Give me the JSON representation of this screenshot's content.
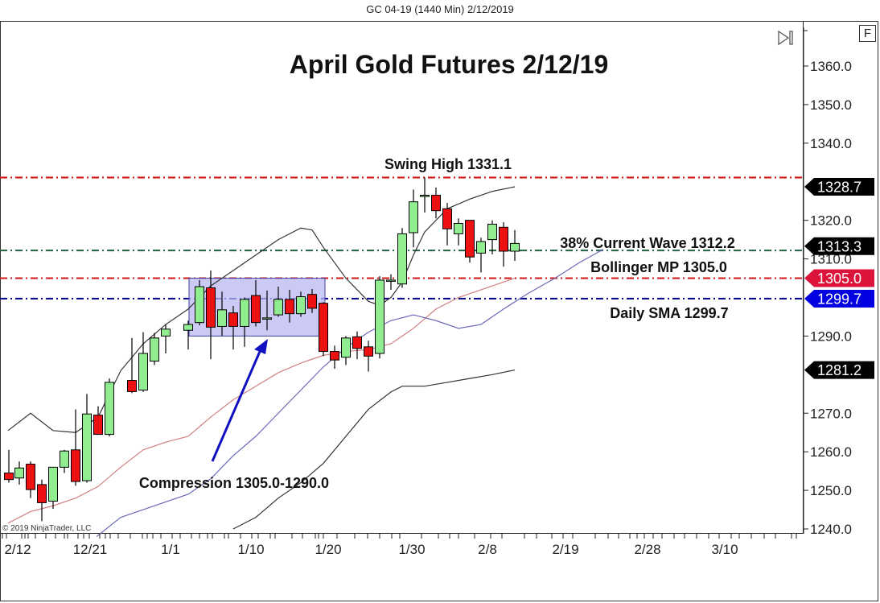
{
  "window": {
    "title": "GC 04-19 (1440 Min)  2/12/2019",
    "f_button_label": "F",
    "skip_icon": "skip-to-end-icon",
    "copyright": "© 2019 NinjaTrader, LLC"
  },
  "chart_data": {
    "type": "candlestick",
    "title": "April Gold Futures 2/12/19",
    "instrument": "GC 04-19",
    "interval": "1440 Min",
    "ylim": [
      1238,
      1370
    ],
    "y_ticks": [
      1360.0,
      1350.0,
      1340.0,
      1320.0,
      1310.0,
      1290.0,
      1270.0,
      1260.0,
      1250.0,
      1240.0
    ],
    "x_tick_labels": [
      "2/12",
      "12/21",
      "1/1",
      "1/10",
      "1/20",
      "1/30",
      "2/8",
      "2/19",
      "2/28",
      "3/10"
    ],
    "candles": [
      {
        "x": 11,
        "o": 1254.5,
        "h": 1260.5,
        "l": 1252.0,
        "c": 1252.8
      },
      {
        "x": 24,
        "o": 1253.2,
        "h": 1257.5,
        "l": 1251.5,
        "c": 1255.8
      },
      {
        "x": 38,
        "o": 1256.8,
        "h": 1257.5,
        "l": 1248.0,
        "c": 1250.2
      },
      {
        "x": 52,
        "o": 1251.5,
        "h": 1252.8,
        "l": 1242.0,
        "c": 1246.8
      },
      {
        "x": 66,
        "o": 1247.2,
        "h": 1256.0,
        "l": 1245.2,
        "c": 1256.0
      },
      {
        "x": 80,
        "o": 1256.0,
        "h": 1260.5,
        "l": 1254.5,
        "c": 1260.2
      },
      {
        "x": 94,
        "o": 1260.5,
        "h": 1271.0,
        "l": 1251.2,
        "c": 1252.3
      },
      {
        "x": 108,
        "o": 1252.5,
        "h": 1275.0,
        "l": 1252.0,
        "c": 1269.8
      },
      {
        "x": 122,
        "o": 1269.5,
        "h": 1271.8,
        "l": 1264.5,
        "c": 1264.5
      },
      {
        "x": 136,
        "o": 1264.5,
        "h": 1279.0,
        "l": 1264.0,
        "c": 1278.0
      },
      {
        "x": 164,
        "o": 1278.5,
        "h": 1289.5,
        "l": 1275.2,
        "c": 1275.6
      },
      {
        "x": 178,
        "o": 1276.0,
        "h": 1291.0,
        "l": 1275.5,
        "c": 1285.5
      },
      {
        "x": 192,
        "o": 1283.5,
        "h": 1290.8,
        "l": 1282.5,
        "c": 1289.5
      },
      {
        "x": 206,
        "o": 1290.0,
        "h": 1293.0,
        "l": 1285.5,
        "c": 1291.8
      },
      {
        "x": 234,
        "o": 1291.5,
        "h": 1294.0,
        "l": 1286.5,
        "c": 1293.0
      },
      {
        "x": 248,
        "o": 1293.5,
        "h": 1304.5,
        "l": 1292.8,
        "c": 1302.8
      },
      {
        "x": 262,
        "o": 1302.5,
        "h": 1307.0,
        "l": 1284.0,
        "c": 1292.3
      },
      {
        "x": 276,
        "o": 1292.5,
        "h": 1301.5,
        "l": 1290.0,
        "c": 1296.8
      },
      {
        "x": 290,
        "o": 1296.0,
        "h": 1297.8,
        "l": 1286.5,
        "c": 1292.5
      },
      {
        "x": 304,
        "o": 1292.5,
        "h": 1300.0,
        "l": 1287.2,
        "c": 1299.5
      },
      {
        "x": 318,
        "o": 1300.5,
        "h": 1304.5,
        "l": 1292.5,
        "c": 1293.5
      },
      {
        "x": 332,
        "o": 1294.5,
        "h": 1301.8,
        "l": 1291.5,
        "c": 1294.7
      },
      {
        "x": 346,
        "o": 1295.5,
        "h": 1302.8,
        "l": 1295.0,
        "c": 1299.5
      },
      {
        "x": 360,
        "o": 1299.5,
        "h": 1302.0,
        "l": 1293.5,
        "c": 1295.8
      },
      {
        "x": 374,
        "o": 1295.8,
        "h": 1301.5,
        "l": 1295.0,
        "c": 1300.2
      },
      {
        "x": 388,
        "o": 1300.8,
        "h": 1302.2,
        "l": 1296.0,
        "c": 1297.2
      },
      {
        "x": 402,
        "o": 1298.5,
        "h": 1298.8,
        "l": 1284.8,
        "c": 1286.0
      },
      {
        "x": 416,
        "o": 1286.0,
        "h": 1287.5,
        "l": 1281.5,
        "c": 1283.8
      },
      {
        "x": 430,
        "o": 1284.5,
        "h": 1290.0,
        "l": 1282.5,
        "c": 1289.5
      },
      {
        "x": 444,
        "o": 1289.8,
        "h": 1291.2,
        "l": 1284.0,
        "c": 1286.8
      },
      {
        "x": 458,
        "o": 1287.2,
        "h": 1288.8,
        "l": 1280.8,
        "c": 1284.8
      },
      {
        "x": 472,
        "o": 1285.5,
        "h": 1305.5,
        "l": 1284.2,
        "c": 1304.5
      },
      {
        "x": 486,
        "o": 1304.5,
        "h": 1306.0,
        "l": 1302.0,
        "c": 1304.5
      },
      {
        "x": 500,
        "o": 1303.5,
        "h": 1318.0,
        "l": 1302.5,
        "c": 1316.5
      },
      {
        "x": 514,
        "o": 1316.8,
        "h": 1328.0,
        "l": 1313.0,
        "c": 1324.8
      },
      {
        "x": 528,
        "o": 1326.5,
        "h": 1331.1,
        "l": 1322.0,
        "c": 1326.5
      },
      {
        "x": 542,
        "o": 1326.5,
        "h": 1328.5,
        "l": 1320.5,
        "c": 1322.5
      },
      {
        "x": 556,
        "o": 1323.0,
        "h": 1324.5,
        "l": 1313.5,
        "c": 1317.8
      },
      {
        "x": 570,
        "o": 1316.5,
        "h": 1320.5,
        "l": 1313.5,
        "c": 1319.2
      },
      {
        "x": 584,
        "o": 1320.0,
        "h": 1320.0,
        "l": 1309.0,
        "c": 1310.5
      },
      {
        "x": 598,
        "o": 1311.5,
        "h": 1315.5,
        "l": 1306.5,
        "c": 1314.5
      },
      {
        "x": 612,
        "o": 1315.0,
        "h": 1320.0,
        "l": 1311.2,
        "c": 1319.0
      },
      {
        "x": 626,
        "o": 1318.2,
        "h": 1319.5,
        "l": 1308.0,
        "c": 1312.0
      },
      {
        "x": 640,
        "o": 1312.0,
        "h": 1317.5,
        "l": 1309.5,
        "c": 1314.0
      }
    ],
    "indicators": {
      "bollinger_upper": {
        "color": "#333333",
        "points": [
          [
            10,
            1265.5
          ],
          [
            38,
            1270
          ],
          [
            66,
            1265.5
          ],
          [
            94,
            1265
          ],
          [
            122,
            1269
          ],
          [
            150,
            1281
          ],
          [
            178,
            1288
          ],
          [
            206,
            1293
          ],
          [
            234,
            1297
          ],
          [
            262,
            1303
          ],
          [
            290,
            1307
          ],
          [
            318,
            1311
          ],
          [
            346,
            1315
          ],
          [
            374,
            1318
          ],
          [
            388,
            1317.5
          ],
          [
            402,
            1313
          ],
          [
            430,
            1305
          ],
          [
            458,
            1299
          ],
          [
            472,
            1298
          ],
          [
            486,
            1300
          ],
          [
            500,
            1304
          ],
          [
            514,
            1311
          ],
          [
            528,
            1317
          ],
          [
            556,
            1323
          ],
          [
            584,
            1325.5
          ],
          [
            612,
            1327.5
          ],
          [
            640,
            1328.7
          ]
        ]
      },
      "bollinger_middle": {
        "color": "#d08080",
        "points": [
          [
            10,
            1241.5
          ],
          [
            38,
            1244.5
          ],
          [
            66,
            1246
          ],
          [
            94,
            1248
          ],
          [
            122,
            1251
          ],
          [
            150,
            1256
          ],
          [
            178,
            1260.5
          ],
          [
            206,
            1262.5
          ],
          [
            234,
            1264
          ],
          [
            262,
            1269
          ],
          [
            290,
            1273.5
          ],
          [
            318,
            1277
          ],
          [
            346,
            1280.5
          ],
          [
            374,
            1283
          ],
          [
            402,
            1285
          ],
          [
            430,
            1286
          ],
          [
            458,
            1286.5
          ],
          [
            486,
            1288
          ],
          [
            514,
            1292
          ],
          [
            542,
            1297
          ],
          [
            570,
            1300
          ],
          [
            598,
            1302
          ],
          [
            626,
            1304
          ],
          [
            640,
            1305
          ]
        ]
      },
      "bollinger_lower": {
        "color": "#333333",
        "points": [
          [
            290,
            1240
          ],
          [
            318,
            1243
          ],
          [
            346,
            1248
          ],
          [
            374,
            1252
          ],
          [
            402,
            1257
          ],
          [
            430,
            1264
          ],
          [
            458,
            1271
          ],
          [
            486,
            1275.5
          ],
          [
            500,
            1277
          ],
          [
            528,
            1277
          ],
          [
            556,
            1278
          ],
          [
            584,
            1279
          ],
          [
            612,
            1280
          ],
          [
            640,
            1281.2
          ]
        ]
      },
      "daily_sma": {
        "color": "#6a6ab8",
        "points": [
          [
            120,
            1238
          ],
          [
            150,
            1243
          ],
          [
            178,
            1245
          ],
          [
            206,
            1247
          ],
          [
            234,
            1249
          ],
          [
            262,
            1253
          ],
          [
            290,
            1259
          ],
          [
            318,
            1264
          ],
          [
            346,
            1270
          ],
          [
            374,
            1276
          ],
          [
            402,
            1282
          ],
          [
            430,
            1287
          ],
          [
            458,
            1291
          ],
          [
            486,
            1294
          ],
          [
            514,
            1295.5
          ],
          [
            542,
            1294
          ],
          [
            570,
            1292
          ],
          [
            598,
            1293
          ],
          [
            626,
            1297
          ],
          [
            656,
            1301
          ],
          [
            690,
            1305
          ],
          [
            720,
            1309
          ],
          [
            750,
            1312.5
          ]
        ]
      }
    },
    "horizontal_lines": [
      {
        "name": "swing-high-line",
        "value": 1331.1,
        "color": "#d02020",
        "style": "dash-dot"
      },
      {
        "name": "38-wave-line",
        "value": 1312.2,
        "color": "#2a6a4a",
        "style": "dash-dot"
      },
      {
        "name": "bollinger-mp-line",
        "value": 1305.0,
        "color": "#d02020",
        "style": "dash-dot"
      },
      {
        "name": "daily-sma-line",
        "value": 1299.7,
        "color": "#0a0a90",
        "style": "dash-dot"
      }
    ],
    "annotations": [
      {
        "name": "swing-high-label",
        "text": "Swing High 1331.1"
      },
      {
        "name": "wave-38-label",
        "text": "38% Current Wave 1312.2"
      },
      {
        "name": "bollinger-mp-label",
        "text": "Bollinger MP 1305.0"
      },
      {
        "name": "daily-sma-label",
        "text": "Daily SMA 1299.7"
      },
      {
        "name": "compression-label",
        "text": "Compression 1305.0-1290.0"
      }
    ],
    "compression_box": {
      "from": 1305.0,
      "to": 1290.0
    },
    "price_markers": [
      {
        "value": "1328.7",
        "color": "#000000"
      },
      {
        "value": "1313.3",
        "color": "#000000"
      },
      {
        "value": "1305.0",
        "color": "#dc143c"
      },
      {
        "value": "1299.7",
        "color": "#0000e0"
      },
      {
        "value": "1281.2",
        "color": "#000000"
      }
    ],
    "colors": {
      "up": "#90ee90",
      "down": "#ee1111",
      "wick": "#000000"
    }
  }
}
